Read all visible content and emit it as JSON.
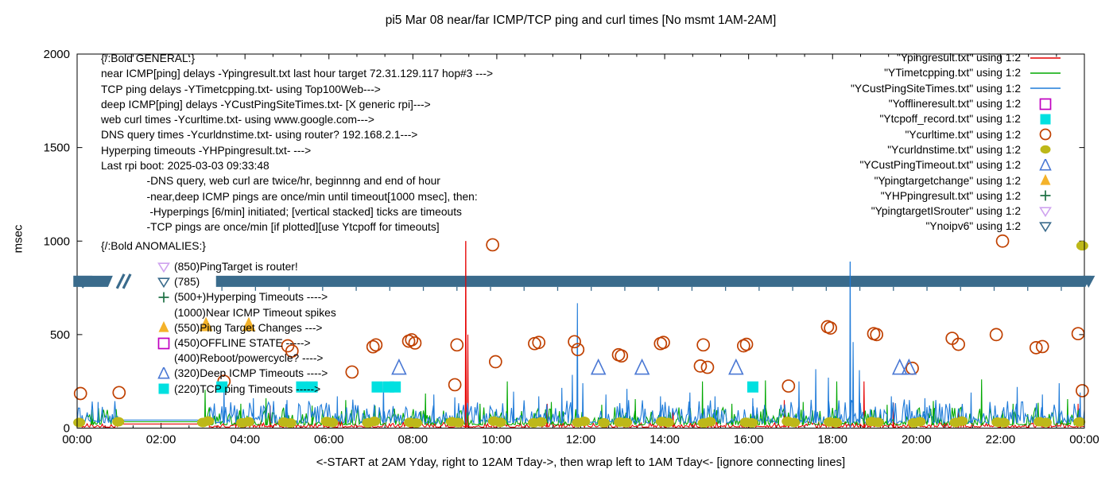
{
  "title": "pi5 Mar 08  near/far ICMP/TCP ping and curl times [No msmt 1AM-2AM]",
  "axes": {
    "ylabel": "msec",
    "xlabel": "<-START at 2AM Yday, right to 12AM Tday->, then wrap left to 1AM Tday<- [ignore connecting lines]"
  },
  "general": {
    "heading": "{/:Bold GENERAL:}",
    "lines": [
      "near ICMP[ping] delays -Ypingresult.txt last hour target 72.31.129.117 hop#3 --->",
      "TCP ping delays -YTimetcpping.txt- using Top100Web--->",
      "deep ICMP[ping] delays -YCustPingSiteTimes.txt- [X generic rpi]--->",
      "web curl times -Ycurltime.txt- using www.google.com--->",
      "DNS query times -Ycurldnstime.txt- using router? 192.168.2.1--->",
      "Hyperping timeouts -YHPpingresult.txt- --->",
      "Last rpi boot: 2025-03-03 09:33:48",
      "               -DNS query, web curl are twice/hr, beginnng and end of hour",
      "               -near,deep ICMP pings are once/min until timeout[1000 msec], then:",
      "                -Hyperpings [6/min] initiated; [vertical stacked] ticks are timeouts",
      "               -TCP pings are once/min [if plotted][use Ytcpoff for timeouts]"
    ]
  },
  "anomalies": {
    "heading": "{/:Bold ANOMALIES:}",
    "rows": [
      {
        "marker": "open-triangle-down",
        "color": "#cfa3ef",
        "label": "(850)PingTarget is router!"
      },
      {
        "marker": "open-triangle-down",
        "color": "#3a6b8c",
        "label": "(785)"
      },
      {
        "marker": "plus",
        "color": "#1e7145",
        "label": "(500+)Hyperping Timeouts ---->"
      },
      {
        "marker": null,
        "color": null,
        "label": "(1000)Near ICMP Timeout spikes"
      },
      {
        "marker": "filled-triangle-up",
        "color": "#f4b22a",
        "label": "(550)Ping Target Changes --->"
      },
      {
        "marker": "open-square",
        "color": "#c000c0",
        "label": "(450)OFFLINE STATE ----->"
      },
      {
        "marker": null,
        "color": null,
        "label": "(400)Reboot/powercycle? ---->"
      },
      {
        "marker": "open-triangle-up",
        "color": "#4a78d4",
        "label": "(320)Deep ICMP Timeouts ---->"
      },
      {
        "marker": "filled-square",
        "color": "#00e0e0",
        "label": "(220)TCP ping Timeouts ----->"
      }
    ]
  },
  "legend": {
    "entries": [
      {
        "label": "\"Ypingresult.txt\" using 1:2",
        "marker": "line",
        "color": "#e60000"
      },
      {
        "label": "\"YTimetcpping.txt\" using 1:2",
        "marker": "line",
        "color": "#00a800"
      },
      {
        "label": "\"YCustPingSiteTimes.txt\" using 1:2",
        "marker": "line",
        "color": "#1f7bd9"
      },
      {
        "label": "\"Yofflineresult.txt\" using 1:2",
        "marker": "open-square",
        "color": "#c000c0"
      },
      {
        "label": "\"Ytcpoff_record.txt\" using 1:2",
        "marker": "filled-square",
        "color": "#00e0e0"
      },
      {
        "label": "\"Ycurltime.txt\" using 1:2",
        "marker": "open-circle",
        "color": "#c04000"
      },
      {
        "label": "\"Ycurldnstime.txt\" using 1:2",
        "marker": "filled-circle",
        "color": "#bdb819"
      },
      {
        "label": "\"YCustPingTimeout.txt\" using 1:2",
        "marker": "open-triangle-up",
        "color": "#4a78d4"
      },
      {
        "label": "\"Ypingtargetchange\" using 1:2",
        "marker": "filled-triangle-up",
        "color": "#f4b22a"
      },
      {
        "label": "\"YHPpingresult.txt\" using 1:2",
        "marker": "plus",
        "color": "#1e7145"
      },
      {
        "label": "\"YpingtargetISrouter\" using 1:2",
        "marker": "open-triangle-down",
        "color": "#cfa3ef"
      },
      {
        "label": "\"Ynoipv6\" using 1:2",
        "marker": "open-triangle-down",
        "color": "#3a6b8c"
      }
    ]
  },
  "chart_data": {
    "type": "line",
    "title": "pi5 Mar 08  near/far ICMP/TCP ping and curl times [No msmt 1AM-2AM]",
    "xlabel": "<-START at 2AM Yday, right to 12AM Tday->, then wrap left to 1AM Tday<- [ignore connecting lines]",
    "ylabel": "msec",
    "x_range_hours": [
      0,
      24
    ],
    "ylim": [
      0,
      2000
    ],
    "grid": false,
    "legend_position": "top-right-inside",
    "x_ticks": [
      "00:00",
      "02:00",
      "04:00",
      "06:00",
      "08:00",
      "10:00",
      "12:00",
      "14:00",
      "16:00",
      "18:00",
      "20:00",
      "22:00",
      "00:00"
    ],
    "y_ticks": [
      0,
      500,
      1000,
      1500,
      2000
    ],
    "minor_x_tick_step_hours": 0.6667,
    "no_measurement_gap_hours": [
      1.0,
      3.15
    ],
    "noipv6_band": {
      "y_msec": 785,
      "thickness_msec": 60,
      "color": "#3a6b8c",
      "segments_hours": [
        [
          -0.09,
          0.85
        ],
        [
          3.31,
          24.12
        ]
      ],
      "break_slashes_at_hours": [
        0.95,
        1.1
      ],
      "under_tick_step_hours": 0.8
    },
    "line_series": [
      {
        "id": "ypingresult",
        "name": "Ypingresult.txt (near ICMP ping)",
        "color": "#e60000",
        "base_msec": 5,
        "jitter_msec": 28,
        "connect_msec": 22,
        "segments": [
          [
            0,
            1.0
          ],
          [
            3.15,
            24
          ]
        ],
        "spikes": [
          [
            4.6,
            120
          ],
          [
            9.26,
            1000
          ],
          [
            9.31,
            500
          ],
          [
            11.2,
            130
          ],
          [
            14.2,
            90
          ],
          [
            16.85,
            150
          ],
          [
            18.75,
            250
          ],
          [
            19.45,
            135
          ],
          [
            21.0,
            95
          ],
          [
            23.85,
            130
          ]
        ]
      },
      {
        "id": "ytimetcpping",
        "name": "YTimetcpping.txt (TCP ping)",
        "color": "#00a800",
        "base_msec": 18,
        "jitter_msec": 95,
        "connect_msec": 34,
        "segments": [
          [
            0,
            1.0
          ],
          [
            3.15,
            24
          ]
        ],
        "spikes": [
          [
            0.35,
            100
          ],
          [
            3.05,
            205
          ],
          [
            3.9,
            130
          ],
          [
            4.5,
            160
          ],
          [
            5.6,
            120
          ],
          [
            6.4,
            150
          ],
          [
            7.1,
            120
          ],
          [
            8.3,
            185
          ],
          [
            9.6,
            130
          ],
          [
            10.25,
            250
          ],
          [
            11.3,
            140
          ],
          [
            12.5,
            125
          ],
          [
            13.3,
            155
          ],
          [
            14.9,
            250
          ],
          [
            15.6,
            130
          ],
          [
            16.4,
            255
          ],
          [
            17.3,
            140
          ],
          [
            18.1,
            250
          ],
          [
            19.3,
            125
          ],
          [
            20.4,
            145
          ],
          [
            21.55,
            260
          ],
          [
            22.3,
            130
          ],
          [
            22.9,
            135
          ],
          [
            23.6,
            155
          ]
        ]
      },
      {
        "id": "ycustpingsitetimes",
        "name": "YCustPingSiteTimes.txt (deep ICMP ping)",
        "color": "#1f7bd9",
        "base_msec": 28,
        "jitter_msec": 125,
        "connect_msec": 43,
        "segments": [
          [
            0,
            1.0
          ],
          [
            3.15,
            24
          ]
        ],
        "spikes": [
          [
            0.5,
            140
          ],
          [
            3.5,
            215
          ],
          [
            4.2,
            160
          ],
          [
            5.0,
            150
          ],
          [
            6.2,
            170
          ],
          [
            7.3,
            245
          ],
          [
            8.5,
            180
          ],
          [
            9.0,
            165
          ],
          [
            10.4,
            195
          ],
          [
            11.0,
            170
          ],
          [
            11.55,
            215
          ],
          [
            11.8,
            285
          ],
          [
            11.92,
            668
          ],
          [
            12.05,
            240
          ],
          [
            12.6,
            180
          ],
          [
            13.1,
            210
          ],
          [
            13.9,
            170
          ],
          [
            14.6,
            190
          ],
          [
            15.2,
            170
          ],
          [
            16.1,
            160
          ],
          [
            17.2,
            250
          ],
          [
            17.6,
            315
          ],
          [
            17.9,
            270
          ],
          [
            18.42,
            890
          ],
          [
            18.49,
            460
          ],
          [
            18.64,
            310
          ],
          [
            19.4,
            170
          ],
          [
            20.2,
            160
          ],
          [
            21.3,
            190
          ],
          [
            22.4,
            220
          ],
          [
            23.0,
            180
          ],
          [
            23.4,
            240
          ],
          [
            23.9,
            190
          ]
        ]
      }
    ],
    "scatter_series": [
      {
        "id": "ycurltime",
        "name": "Ycurltime.txt (web curl times)",
        "marker": "open-circle",
        "color": "#c04000",
        "size": 15,
        "points": [
          [
            0.08,
            185
          ],
          [
            1.0,
            190
          ],
          [
            3.5,
            250
          ],
          [
            5.02,
            440
          ],
          [
            5.12,
            412
          ],
          [
            6.55,
            300
          ],
          [
            7.05,
            435
          ],
          [
            7.12,
            445
          ],
          [
            7.9,
            465
          ],
          [
            7.97,
            472
          ],
          [
            8.05,
            455
          ],
          [
            9.0,
            232
          ],
          [
            9.05,
            445
          ],
          [
            9.9,
            980
          ],
          [
            9.97,
            355
          ],
          [
            10.9,
            452
          ],
          [
            11.0,
            458
          ],
          [
            11.85,
            462
          ],
          [
            11.93,
            420
          ],
          [
            12.9,
            392
          ],
          [
            12.97,
            386
          ],
          [
            13.9,
            452
          ],
          [
            13.97,
            458
          ],
          [
            14.85,
            332
          ],
          [
            14.92,
            445
          ],
          [
            15.02,
            325
          ],
          [
            15.88,
            440
          ],
          [
            15.95,
            448
          ],
          [
            16.95,
            225
          ],
          [
            17.88,
            542
          ],
          [
            17.95,
            535
          ],
          [
            18.98,
            505
          ],
          [
            19.05,
            500
          ],
          [
            19.9,
            320
          ],
          [
            20.85,
            480
          ],
          [
            21.0,
            448
          ],
          [
            21.9,
            500
          ],
          [
            22.05,
            1000
          ],
          [
            22.85,
            430
          ],
          [
            23.0,
            436
          ],
          [
            23.85,
            505
          ],
          [
            23.95,
            200
          ]
        ]
      },
      {
        "id": "ycurldnstime",
        "name": "Ycurldnstime.txt (DNS query times)",
        "marker": "filled-circle",
        "color": "#bdb819",
        "size": 15,
        "points": [
          [
            0.05,
            30
          ],
          [
            0.98,
            34
          ],
          [
            3.0,
            30
          ],
          [
            3.12,
            38
          ],
          [
            3.93,
            28
          ],
          [
            4.08,
            34
          ],
          [
            4.93,
            32
          ],
          [
            5.08,
            27
          ],
          [
            5.95,
            35
          ],
          [
            6.08,
            30
          ],
          [
            6.93,
            28
          ],
          [
            7.08,
            36
          ],
          [
            7.93,
            31
          ],
          [
            8.08,
            27
          ],
          [
            8.93,
            34
          ],
          [
            9.08,
            29
          ],
          [
            9.93,
            37
          ],
          [
            10.08,
            31
          ],
          [
            10.88,
            28
          ],
          [
            11.05,
            33
          ],
          [
            11.93,
            30
          ],
          [
            12.08,
            36
          ],
          [
            12.55,
            28
          ],
          [
            12.93,
            32
          ],
          [
            13.08,
            29
          ],
          [
            13.93,
            35
          ],
          [
            14.08,
            30
          ],
          [
            14.93,
            27
          ],
          [
            15.08,
            34
          ],
          [
            15.93,
            31
          ],
          [
            16.08,
            28
          ],
          [
            16.93,
            36
          ],
          [
            17.08,
            30
          ],
          [
            17.93,
            33
          ],
          [
            18.08,
            29
          ],
          [
            18.93,
            35
          ],
          [
            19.08,
            31
          ],
          [
            19.93,
            28
          ],
          [
            20.08,
            34
          ],
          [
            20.93,
            30
          ],
          [
            21.08,
            37
          ],
          [
            21.93,
            32
          ],
          [
            22.08,
            29
          ],
          [
            22.93,
            34
          ],
          [
            23.08,
            30
          ],
          [
            23.88,
            33
          ],
          [
            23.95,
            975
          ]
        ]
      },
      {
        "id": "ytcpoff_record",
        "name": "Ytcpoff_record.txt (TCP ping timeouts)",
        "marker": "filled-square",
        "color": "#00e0e0",
        "size": 14,
        "points": [
          [
            3.45,
            220
          ],
          [
            5.35,
            220
          ],
          [
            5.6,
            220
          ],
          [
            7.15,
            220
          ],
          [
            7.42,
            220
          ],
          [
            7.58,
            220
          ],
          [
            16.1,
            220
          ]
        ]
      },
      {
        "id": "ycustpingtimeout",
        "name": "YCustPingTimeout.txt (deep ICMP timeouts)",
        "marker": "open-triangle-up",
        "color": "#4a78d4",
        "size": 17,
        "points": [
          [
            7.67,
            320
          ],
          [
            12.42,
            320
          ],
          [
            13.46,
            320
          ],
          [
            15.7,
            320
          ],
          [
            19.6,
            320
          ],
          [
            19.82,
            320
          ]
        ]
      },
      {
        "id": "ypingtargetchange",
        "name": "Ypingtargetchange (ping target changes)",
        "marker": "filled-triangle-up",
        "color": "#f4b22a",
        "size": 17,
        "points": [
          [
            3.07,
            550
          ],
          [
            4.09,
            550
          ]
        ]
      }
    ]
  }
}
